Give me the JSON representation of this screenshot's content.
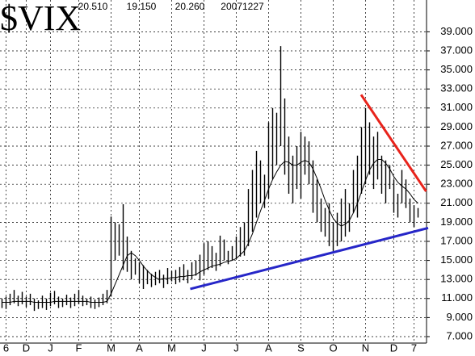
{
  "chart_data": {
    "type": "range-bar",
    "title": "$VIX",
    "header_values": [
      "20.510",
      "19.150",
      "20.260",
      "20071227"
    ],
    "categories": [
      null,
      "6",
      null,
      null,
      null,
      null,
      "D",
      null,
      null,
      null,
      null,
      null,
      "J",
      null,
      null,
      null,
      null,
      null,
      null,
      "F",
      null,
      null,
      null,
      null,
      null,
      null,
      null,
      "M",
      null,
      null,
      null,
      null,
      null,
      null,
      "A",
      null,
      null,
      null,
      null,
      null,
      null,
      null,
      "M",
      null,
      null,
      null,
      null,
      null,
      null,
      null,
      "J",
      null,
      null,
      null,
      null,
      null,
      null,
      null,
      "J",
      null,
      null,
      null,
      null,
      null,
      null,
      null,
      "A",
      null,
      null,
      null,
      null,
      null,
      null,
      null,
      "S",
      null,
      null,
      null,
      null,
      null,
      null,
      null,
      "O",
      null,
      null,
      null,
      null,
      null,
      null,
      null,
      "N",
      null,
      null,
      null,
      null,
      null,
      null,
      "D",
      null,
      null,
      null,
      null,
      "7",
      null
    ],
    "high": [
      11.0,
      11.2,
      11.5,
      11.9,
      11.3,
      11.7,
      11.2,
      11.5,
      11.0,
      10.8,
      11.3,
      11.0,
      11.6,
      11.8,
      11.2,
      11.0,
      11.4,
      11.1,
      11.5,
      11.9,
      11.3,
      11.0,
      11.2,
      10.9,
      11.1,
      11.5,
      11.9,
      19.6,
      19.0,
      18.8,
      20.9,
      17.5,
      16.0,
      15.2,
      14.8,
      14.5,
      14.0,
      13.6,
      13.8,
      14.0,
      13.5,
      14.2,
      13.9,
      14.0,
      14.3,
      14.6,
      14.0,
      14.8,
      15.0,
      15.6,
      16.8,
      17.0,
      16.5,
      15.8,
      17.6,
      17.2,
      16.0,
      16.5,
      17.5,
      18.5,
      19.0,
      22.5,
      24.5,
      26.5,
      25.5,
      24.0,
      29.5,
      31.0,
      30.5,
      37.5,
      32.0,
      28.0,
      26.0,
      27.0,
      28.5,
      28.0,
      27.5,
      25.5,
      23.5,
      21.5,
      20.5,
      21.0,
      19.0,
      20.0,
      21.5,
      22.5,
      21.0,
      24.5,
      26.0,
      29.0,
      31.0,
      29.5,
      28.0,
      28.5,
      26.0,
      25.5,
      25.0,
      23.5,
      22.0,
      24.5,
      23.5,
      21.5,
      20.8,
      20.5
    ],
    "low": [
      10.0,
      9.9,
      10.3,
      10.5,
      10.2,
      10.4,
      10.1,
      10.3,
      9.7,
      9.9,
      10.0,
      9.8,
      10.2,
      10.4,
      10.0,
      10.1,
      10.3,
      10.0,
      10.2,
      10.4,
      10.2,
      10.3,
      10.0,
      9.9,
      10.1,
      10.3,
      10.5,
      11.2,
      15.0,
      15.5,
      14.0,
      13.8,
      13.0,
      13.5,
      12.6,
      12.0,
      12.5,
      12.2,
      12.4,
      12.6,
      12.1,
      12.5,
      12.8,
      12.5,
      12.7,
      12.9,
      12.6,
      13.0,
      13.4,
      12.9,
      13.5,
      14.0,
      14.2,
      13.9,
      14.4,
      15.0,
      14.6,
      15.0,
      15.2,
      15.4,
      15.5,
      16.5,
      18.0,
      19.5,
      21.0,
      20.5,
      21.5,
      23.5,
      25.0,
      27.0,
      24.0,
      22.0,
      21.0,
      22.5,
      21.5,
      24.0,
      23.0,
      20.0,
      19.0,
      18.0,
      17.5,
      16.5,
      16.0,
      16.5,
      17.0,
      17.5,
      18.0,
      20.0,
      19.5,
      22.0,
      23.0,
      24.0,
      22.5,
      23.5,
      22.0,
      21.0,
      22.5,
      20.0,
      19.5,
      21.0,
      20.5,
      19.0,
      18.5,
      19.5
    ],
    "color": "#000000",
    "ma": {
      "color": "#000000",
      "values": [
        10.6,
        10.6,
        10.6,
        10.7,
        10.7,
        10.7,
        10.7,
        10.7,
        10.6,
        10.6,
        10.6,
        10.6,
        10.6,
        10.7,
        10.7,
        10.7,
        10.7,
        10.7,
        10.7,
        10.7,
        10.7,
        10.7,
        10.6,
        10.6,
        10.6,
        10.6,
        10.7,
        11.5,
        12.5,
        13.5,
        14.5,
        15.5,
        15.8,
        15.5,
        15.0,
        14.4,
        13.9,
        13.5,
        13.2,
        13.0,
        13.1,
        13.1,
        13.2,
        13.2,
        13.3,
        13.3,
        13.4,
        13.4,
        13.5,
        13.8,
        14.0,
        14.2,
        14.4,
        14.5,
        14.6,
        14.8,
        14.9,
        15.0,
        15.2,
        15.6,
        16.0,
        16.8,
        17.8,
        19.0,
        20.2,
        21.3,
        22.5,
        23.5,
        24.3,
        25.0,
        25.4,
        25.3,
        25.0,
        25.0,
        25.3,
        25.5,
        25.3,
        24.6,
        23.6,
        22.5,
        21.3,
        20.3,
        19.4,
        18.9,
        18.6,
        18.8,
        19.2,
        20.0,
        21.0,
        22.2,
        23.4,
        24.5,
        25.2,
        25.6,
        25.6,
        25.2,
        24.6,
        23.8,
        23.2,
        22.8,
        22.5,
        22.0,
        21.4,
        21.0
      ]
    },
    "trendlines": [
      {
        "color": "#e8231b",
        "x": [
          88.9,
          105
        ],
        "values": [
          32.4,
          22.25
        ]
      },
      {
        "color": "#2626c8",
        "x": [
          46.6,
          105.5
        ],
        "values": [
          12.0,
          18.4
        ]
      }
    ],
    "ylim": [
      6.32,
      42.34
    ],
    "yticks": [
      {
        "value": 7,
        "label": "7.000"
      },
      {
        "value": 9,
        "label": "9.000"
      },
      {
        "value": 11,
        "label": "11.000"
      },
      {
        "value": 13,
        "label": "13.000"
      },
      {
        "value": 15,
        "label": "15.000"
      },
      {
        "value": 17,
        "label": "17.000"
      },
      {
        "value": 19,
        "label": "19.000"
      },
      {
        "value": 21,
        "label": "21.000"
      },
      {
        "value": 23,
        "label": "23.000"
      },
      {
        "value": 25,
        "label": "25.000"
      },
      {
        "value": 27,
        "label": "27.000"
      },
      {
        "value": 29,
        "label": "29.000"
      },
      {
        "value": 31,
        "label": "31.000"
      },
      {
        "value": 33,
        "label": "33.000"
      },
      {
        "value": 35,
        "label": "35.000"
      },
      {
        "value": 37,
        "label": "37.000"
      },
      {
        "value": 39,
        "label": "39.000"
      }
    ],
    "grid": true
  }
}
